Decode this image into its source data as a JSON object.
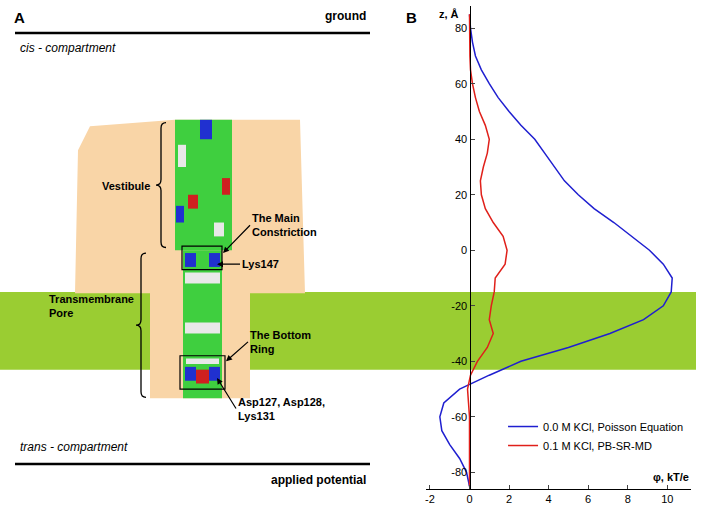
{
  "chart_data": {
    "type": "line",
    "panel_label": "B",
    "x_label": "φ, kT/e",
    "y_label": "z, Å",
    "xlim": [
      -2.2,
      11.2
    ],
    "xticks": [
      -2,
      0,
      2,
      4,
      6,
      8,
      10
    ],
    "ylim": [
      -86,
      88
    ],
    "yticks": [
      -80,
      -60,
      -40,
      -20,
      0,
      20,
      40,
      60,
      80
    ],
    "grid": false,
    "legend": "lower right",
    "membrane_z": [
      -43,
      -15
    ],
    "membrane_color": "#9acd32",
    "series": [
      {
        "name": "0.0 M KCl, Poisson Equation",
        "color": "#1f1fd0",
        "z": [
          85,
          80,
          75,
          70,
          65,
          60,
          55,
          50,
          45,
          40,
          35,
          30,
          25,
          20,
          15,
          10,
          5,
          0,
          -5,
          -10,
          -15,
          -20,
          -25,
          -30,
          -35,
          -40,
          -45,
          -50,
          -55,
          -60,
          -65,
          -70,
          -75,
          -80,
          -85
        ],
        "phi": [
          0,
          0.05,
          0.15,
          0.3,
          0.6,
          1.0,
          1.45,
          2.0,
          2.6,
          3.3,
          3.8,
          4.3,
          4.8,
          5.5,
          6.3,
          7.3,
          8.2,
          9.1,
          9.8,
          10.25,
          10.2,
          9.8,
          8.8,
          7.1,
          5.0,
          2.6,
          1.0,
          -0.5,
          -1.3,
          -1.5,
          -1.4,
          -1.0,
          -0.5,
          -0.15,
          0
        ]
      },
      {
        "name": "0.1 M KCl, PB-SR-MD",
        "color": "#e0201a",
        "z": [
          85,
          80,
          75,
          70,
          65,
          60,
          55,
          50,
          45,
          40,
          35,
          30,
          25,
          20,
          15,
          10,
          5,
          0,
          -5,
          -10,
          -15,
          -20,
          -25,
          -30,
          -35,
          -40,
          -45,
          -50,
          -55,
          -60,
          -65,
          -70,
          -75,
          -80,
          -85
        ],
        "phi": [
          0,
          0,
          0,
          0.02,
          0.05,
          0.15,
          0.3,
          0.5,
          0.8,
          1.0,
          0.9,
          0.7,
          0.55,
          0.6,
          0.8,
          1.2,
          1.7,
          1.9,
          1.8,
          1.3,
          1.25,
          1.1,
          1.0,
          1.2,
          0.9,
          0.4,
          0.05,
          -0.1,
          -0.05,
          0,
          0,
          0,
          0,
          0,
          0
        ]
      }
    ]
  },
  "diagram": {
    "panel_label": "A",
    "top_electrode": "ground",
    "top_compartment": "cis - compartment",
    "bottom_compartment": "trans - compartment",
    "bottom_electrode": "applied potential",
    "labels": [
      "Vestibule",
      "The Main\nConstriction",
      "Lys147",
      "Transmembrane\nPore",
      "The Bottom\nRing",
      "Asp127, Asp128,\nLys131"
    ]
  }
}
